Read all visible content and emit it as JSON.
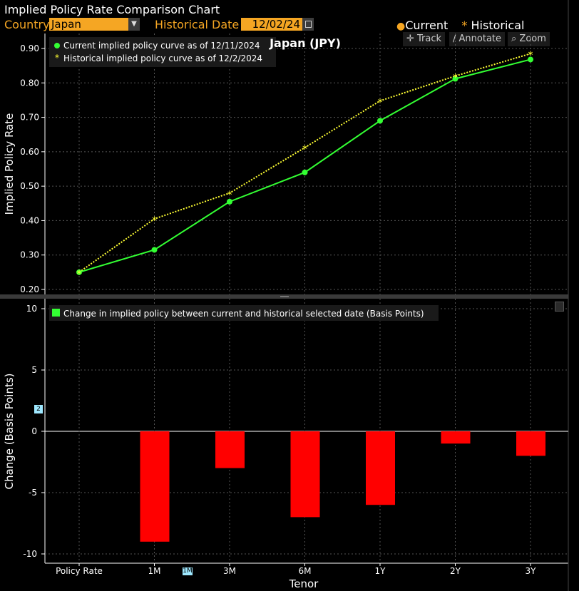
{
  "window": {
    "title": "Implied Policy Rate Comparison Chart"
  },
  "controls": {
    "country_label": "Country",
    "country_value": "Japan",
    "historical_date_label": "Historical Date",
    "historical_date_value": "12/02/24"
  },
  "legend_top": {
    "current": "Current",
    "historical": "Historical"
  },
  "toolbar": {
    "track": "Track",
    "annotate": "Annotate",
    "zoom": "Zoom"
  },
  "badges": {
    "left_axis": "2",
    "x_axis": "1M"
  },
  "colors": {
    "accent": "#f5a623",
    "current": "#33ff33",
    "historical": "#ffff33",
    "bar": "#ff0000",
    "badge": "#9fe8ff"
  },
  "chart_data": [
    {
      "type": "line",
      "title": "Japan (JPY)",
      "ylabel": "Implied Policy Rate",
      "ylim": [
        0.2,
        0.9
      ],
      "yticks": [
        "0.20",
        "0.30",
        "0.40",
        "0.50",
        "0.60",
        "0.70",
        "0.80",
        "0.90"
      ],
      "categories": [
        "Policy Rate",
        "1M",
        "3M",
        "6M",
        "1Y",
        "2Y",
        "3Y"
      ],
      "series": [
        {
          "name": "Current implied policy curve as of 12/11/2024",
          "marker": "dot",
          "color": "#33ff33",
          "values": [
            0.25,
            0.315,
            0.455,
            0.54,
            0.69,
            0.812,
            0.868
          ]
        },
        {
          "name": "Historical implied policy curve as of 12/2/2024",
          "marker": "star",
          "color": "#ffff33",
          "values": [
            0.25,
            0.405,
            0.48,
            0.612,
            0.748,
            0.82,
            0.885
          ]
        }
      ],
      "grid": true,
      "legend_position": "top-left"
    },
    {
      "type": "bar",
      "xlabel": "Tenor",
      "ylabel": "Change (Basis Points)",
      "ylim": [
        -10.5,
        10.5
      ],
      "yticks": [
        "10",
        "5",
        "0",
        "-5",
        "-10"
      ],
      "categories": [
        "Policy Rate",
        "1M",
        "3M",
        "6M",
        "1Y",
        "2Y",
        "3Y"
      ],
      "series": [
        {
          "name": "Change in implied policy between current and historical selected date (Basis Points)",
          "color": "#ff0000",
          "values": [
            0,
            -9,
            -3,
            -7,
            -6,
            -1,
            -2
          ]
        }
      ],
      "grid": true,
      "legend_position": "top-left"
    }
  ]
}
